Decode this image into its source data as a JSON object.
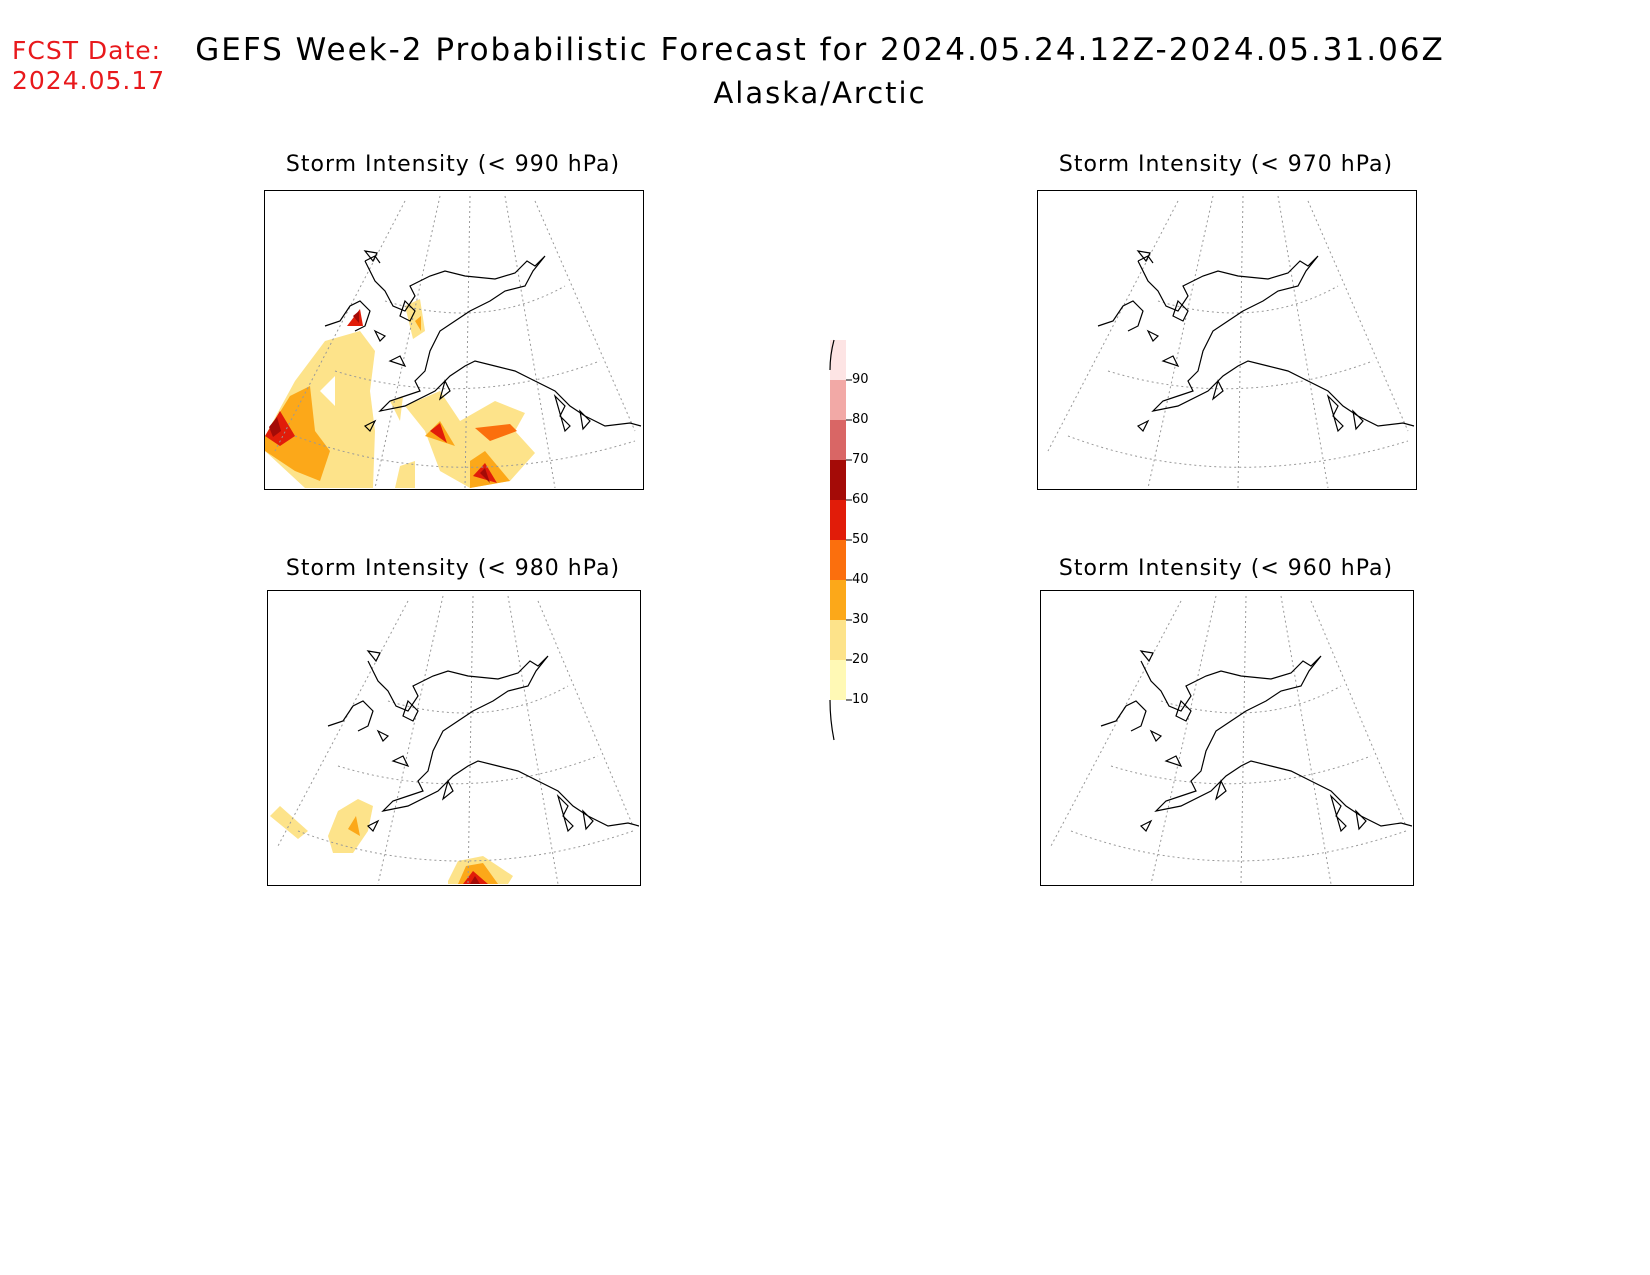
{
  "header": {
    "fcst_label": "FCST Date:",
    "fcst_date": "2024.05.17",
    "title": "GEFS Week-2 Probabilistic Forecast for 2024.05.24.12Z-2024.05.31.06Z",
    "subtitle": "Alaska/Arctic"
  },
  "panels": [
    {
      "id": "p990",
      "title": "Storm Intensity (< 990 hPa)"
    },
    {
      "id": "p970",
      "title": "Storm Intensity (< 970 hPa)"
    },
    {
      "id": "p980",
      "title": "Storm Intensity (< 980 hPa)"
    },
    {
      "id": "p960",
      "title": "Storm Intensity (< 960 hPa)"
    }
  ],
  "colorbar": {
    "levels": [
      "10",
      "20",
      "30",
      "40",
      "50",
      "60",
      "70",
      "80",
      "90"
    ],
    "colors": [
      "#fff9b5",
      "#fde38a",
      "#fca819",
      "#fb6f0d",
      "#e11c09",
      "#a40b07",
      "#d96665",
      "#f2a9a6",
      "#fde4e4"
    ]
  }
}
